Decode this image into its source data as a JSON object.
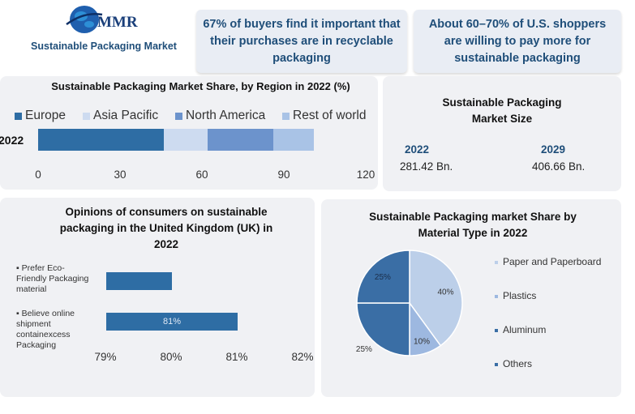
{
  "header": {
    "logo_text": "MMR",
    "subtitle": "Sustainable Packaging Market",
    "callouts": [
      "67% of buyers find it important that their purchases are in recyclable packaging",
      "About 60–70% of U.S. shoppers are willing to pay more for sustainable packaging"
    ]
  },
  "market_size": {
    "title_line1": "Sustainable Packaging",
    "title_line2": "Market Size",
    "year1": "2022",
    "value1": "281.42 Bn.",
    "year2": "2029",
    "value2": "406.66 Bn."
  },
  "colors": {
    "primary": "#2e6da4",
    "light": "#a9c3e6",
    "mid": "#6c93cc",
    "pale": "#cddbf0",
    "panel": "#f0f1f4",
    "heading": "#1f4e79"
  },
  "chart_data": [
    {
      "type": "bar",
      "orientation": "horizontal",
      "stacked": true,
      "title": "Sustainable Packaging Market Share, by Region in 2022 (%)",
      "categories": [
        "2022"
      ],
      "series": [
        {
          "name": "Europe",
          "values": [
            46
          ],
          "color": "#2e6da4"
        },
        {
          "name": "Asia Pacific",
          "values": [
            16
          ],
          "color": "#cddbf0"
        },
        {
          "name": "North America",
          "values": [
            24
          ],
          "color": "#6c93cc"
        },
        {
          "name": "Rest of world",
          "values": [
            15
          ],
          "color": "#a9c3e6"
        }
      ],
      "xticks": [
        "0",
        "30",
        "60",
        "90",
        "120"
      ],
      "xlim": [
        0,
        120
      ],
      "legend": "top"
    },
    {
      "type": "bar",
      "orientation": "horizontal",
      "title": "Opinions of consumers on sustainable packaging in the United Kingdom (UK) in 2022",
      "categories": [
        "Prefer Eco-Friendly Packaging material",
        "Believe online shipment containexcess Packaging"
      ],
      "category_lines": [
        [
          "Prefer Eco-",
          "Friendly Packaging",
          "material"
        ],
        [
          "Believe online",
          "shipment",
          "containexcess",
          "Packaging"
        ]
      ],
      "values": [
        80,
        81
      ],
      "data_labels": [
        "",
        "81%"
      ],
      "xticks": [
        "79%",
        "80%",
        "81%",
        "82%"
      ],
      "xlim": [
        79,
        82
      ]
    },
    {
      "type": "pie",
      "title": "Sustainable Packaging market Share by Material Type in 2022",
      "labels": [
        "Paper and Paperboard",
        "Plastics",
        "Aluminum",
        "Others"
      ],
      "values": [
        40,
        10,
        25,
        25
      ],
      "data_labels": [
        "40%",
        "10%",
        "25%",
        "25%"
      ],
      "colors": [
        "#bccfe9",
        "#9db8e0",
        "#3a6ea5",
        "#3a6ea5"
      ],
      "legend": "right"
    }
  ]
}
